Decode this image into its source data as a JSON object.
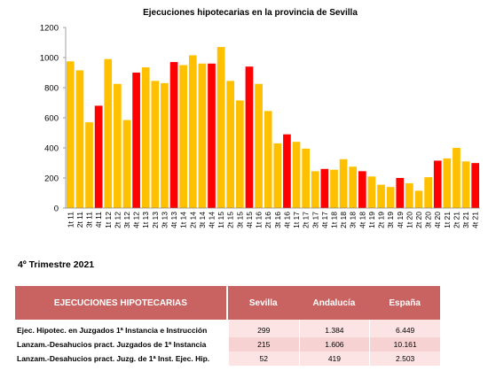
{
  "chart_data": {
    "type": "bar",
    "title": "Ejecuciones hipotecarias en la provincia de Sevilla",
    "xlabel": "",
    "ylabel": "",
    "ylim": [
      0,
      1200
    ],
    "yticks": [
      0,
      200,
      400,
      600,
      800,
      1000,
      1200
    ],
    "grid": false,
    "legend": "none",
    "colors": {
      "default": "#ffc000",
      "highlight": "#ff0000"
    },
    "categories": [
      "1t 11",
      "2t 11",
      "3t 11",
      "4t 11",
      "1t 12",
      "2t 12",
      "3t 12",
      "4t 12",
      "1t 13",
      "2t 13",
      "3t 13",
      "4t 13",
      "1t 14",
      "2t 14",
      "3t 14",
      "4t 14",
      "1t 15",
      "2t 15",
      "3t 15",
      "4t 15",
      "1t 16",
      "2t 16",
      "3t 16",
      "4t 16",
      "1t 17",
      "2t 17",
      "3t 17",
      "4t 17",
      "1t 18",
      "2t 18",
      "3t 18",
      "4t 18",
      "1t 19",
      "2t 19",
      "3t 19",
      "4t 19",
      "1t 20",
      "2t 20",
      "3t 20",
      "4t 20",
      "1t 21",
      "2t 21",
      "3t 21",
      "4t 21"
    ],
    "values": [
      975,
      915,
      570,
      680,
      990,
      825,
      585,
      900,
      935,
      845,
      830,
      970,
      950,
      1015,
      960,
      960,
      1070,
      845,
      715,
      940,
      825,
      645,
      430,
      490,
      440,
      395,
      245,
      260,
      255,
      325,
      275,
      245,
      210,
      155,
      140,
      200,
      165,
      115,
      205,
      315,
      330,
      400,
      310,
      299
    ],
    "highlight": [
      false,
      false,
      false,
      true,
      false,
      false,
      false,
      true,
      false,
      false,
      false,
      true,
      false,
      false,
      false,
      true,
      false,
      false,
      false,
      true,
      false,
      false,
      false,
      true,
      false,
      false,
      false,
      true,
      false,
      false,
      false,
      true,
      false,
      false,
      false,
      true,
      false,
      false,
      false,
      true,
      false,
      false,
      false,
      true
    ]
  },
  "section_title": "4º Trimestre 2021",
  "table": {
    "headers": [
      "EJECUCIONES HIPOTECARIAS",
      "Sevilla",
      "Andalucía",
      "España"
    ],
    "rows": [
      {
        "label": "Ejec. Hipotec. en Juzgados 1ª Instancia e Instrucción",
        "values": [
          "299",
          "1.384",
          "6.449"
        ]
      },
      {
        "label": "Lanzam.-Desahucios pract. Juzgados de 1ª Instancia",
        "values": [
          "215",
          "1.606",
          "10.161"
        ]
      },
      {
        "label": "Lanzam.-Desahucios pract. Juzg. de 1ª Inst. Ejec. Hip.",
        "values": [
          "52",
          "419",
          "2.503"
        ]
      }
    ]
  }
}
